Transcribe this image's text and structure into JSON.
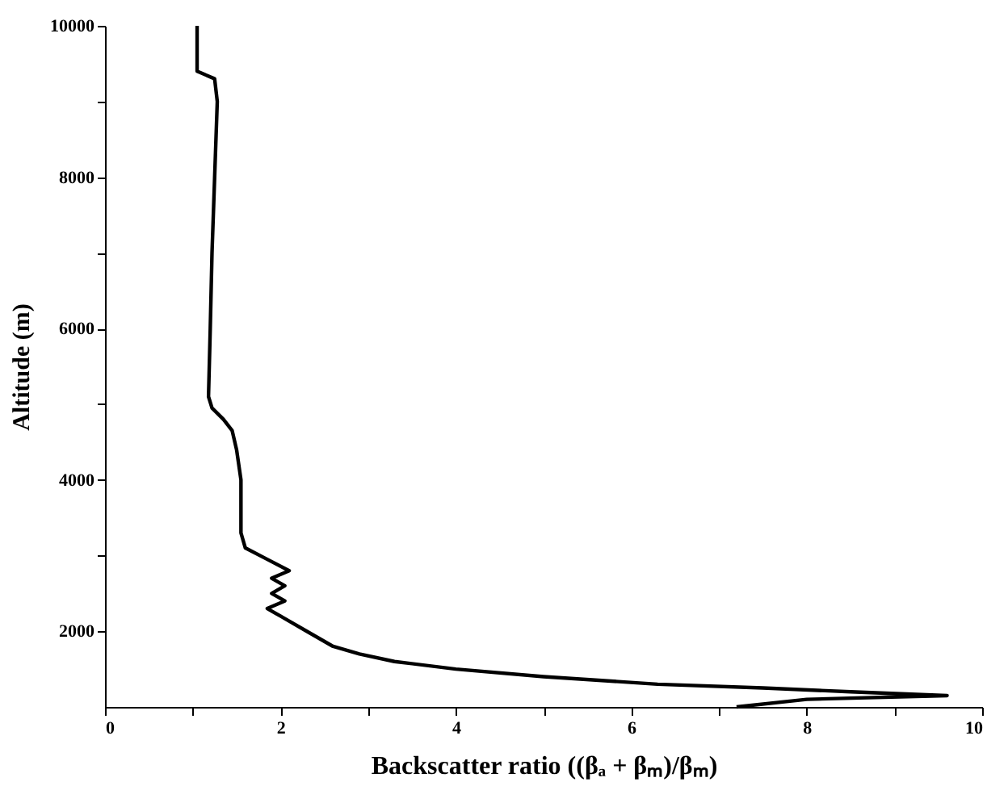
{
  "chart_data": {
    "type": "line",
    "xlabel": "Backscatter ratio ((βₐ + βₘ)/βₘ)",
    "ylabel": "Altitude (m)",
    "xlim": [
      0,
      10
    ],
    "ylim": [
      1000,
      10000
    ],
    "xticks": [
      0,
      {
        "value": 1,
        "label": null
      },
      2,
      {
        "value": 3,
        "label": null
      },
      4,
      {
        "value": 5,
        "label": null
      },
      6,
      {
        "value": 7,
        "label": null
      },
      8,
      {
        "value": 9,
        "label": null
      },
      10
    ],
    "yticks": [
      2000,
      {
        "value": 3000,
        "label": null
      },
      4000,
      {
        "value": 5000,
        "label": null
      },
      6000,
      {
        "value": 7000,
        "label": null
      },
      8000,
      {
        "value": 9000,
        "label": null
      },
      10000
    ],
    "grid": false,
    "marker": "none",
    "line_style": "solid",
    "series": [
      {
        "color": "#000000",
        "x": [
          1.05,
          1.05,
          1.25,
          1.28,
          1.25,
          1.22,
          1.2,
          1.18,
          1.22,
          1.35,
          1.45,
          1.5,
          1.55,
          1.55,
          1.6,
          1.85,
          2.1,
          1.9,
          2.05,
          1.9,
          2.05,
          1.85,
          2.0,
          2.3,
          2.6,
          2.9,
          3.3,
          4.0,
          5.0,
          6.3,
          7.5,
          8.5,
          9.6,
          8.0,
          7.2
        ],
        "values": [
          10000,
          9400,
          9300,
          9000,
          8000,
          7000,
          6000,
          5100,
          4950,
          4800,
          4650,
          4400,
          4000,
          3300,
          3100,
          2950,
          2800,
          2700,
          2600,
          2500,
          2400,
          2300,
          2200,
          2000,
          1800,
          1700,
          1600,
          1500,
          1400,
          1300,
          1250,
          1200,
          1150,
          1100,
          1000
        ]
      }
    ]
  }
}
